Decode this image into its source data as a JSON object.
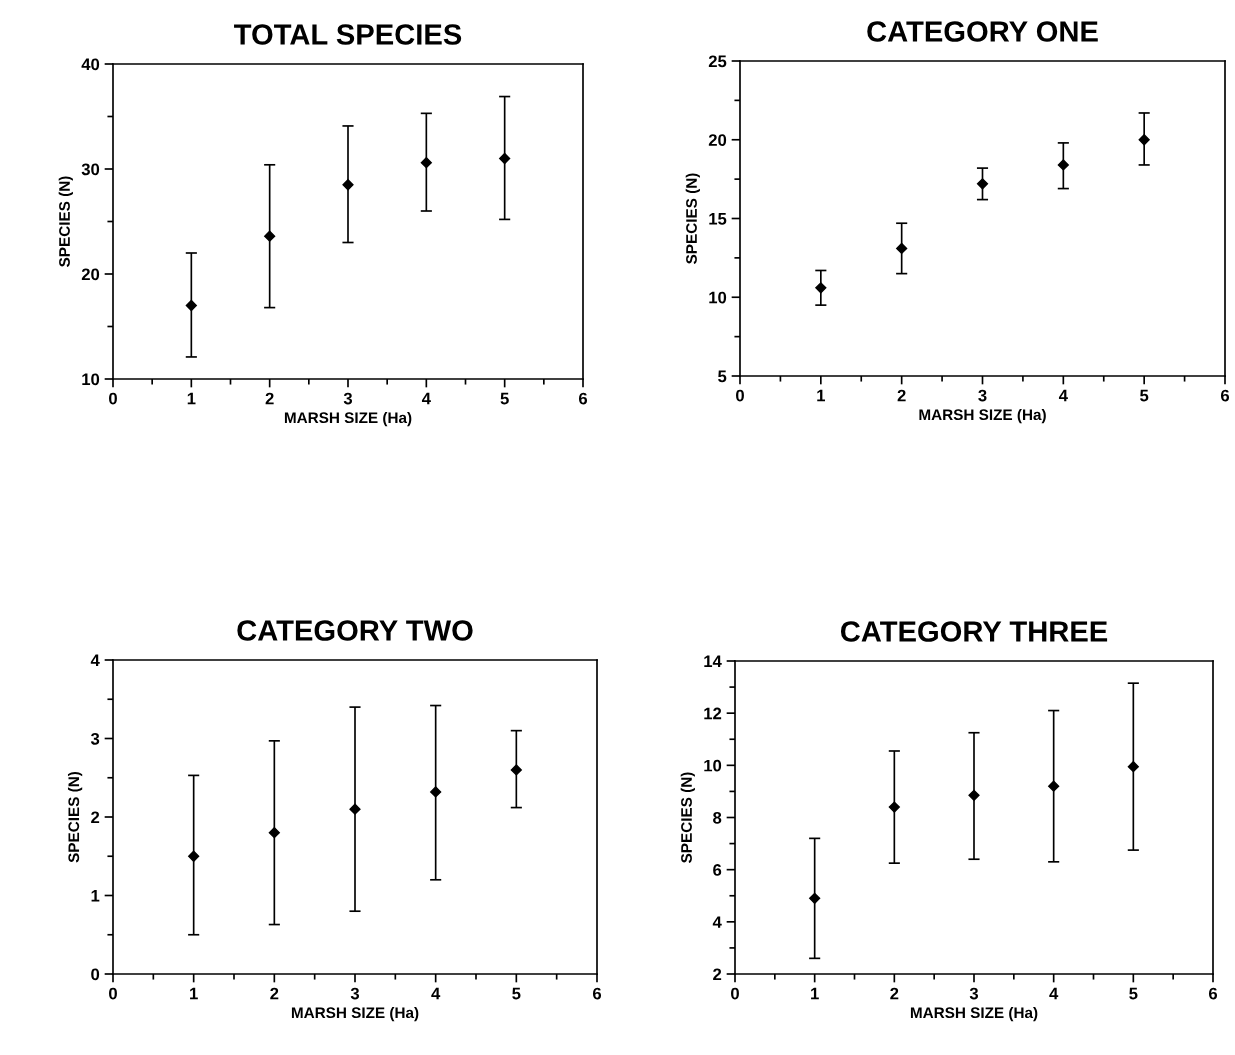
{
  "chart_data": [
    {
      "type": "scatter",
      "title": "TOTAL SPECIES",
      "xlabel": "MARSH SIZE (Ha)",
      "ylabel": "SPECIES (N)",
      "x": [
        1,
        2,
        3,
        4,
        5
      ],
      "values": [
        17.0,
        23.6,
        28.5,
        30.6,
        31.0
      ],
      "errors": [
        [
          12.1,
          22.0
        ],
        [
          16.8,
          30.4
        ],
        [
          23.0,
          34.1
        ],
        [
          26.0,
          35.3
        ],
        [
          25.2,
          36.9
        ]
      ],
      "color": "#000000",
      "marker": "diamond",
      "xlim": [
        0,
        6
      ],
      "xticks": [
        0,
        1,
        2,
        3,
        4,
        5,
        6
      ],
      "ylim": [
        10,
        40
      ],
      "yticks": [
        10,
        20,
        30,
        40
      ],
      "grid": false,
      "legend": false
    },
    {
      "type": "scatter",
      "title": "CATEGORY ONE",
      "xlabel": "MARSH SIZE (Ha)",
      "ylabel": "SPECIES (N)",
      "x": [
        1,
        2,
        3,
        4,
        5
      ],
      "values": [
        10.6,
        13.1,
        17.2,
        18.4,
        20.0
      ],
      "errors": [
        [
          9.5,
          11.7
        ],
        [
          11.5,
          14.7
        ],
        [
          16.2,
          18.2
        ],
        [
          16.9,
          19.8
        ],
        [
          18.4,
          21.7
        ]
      ],
      "color": "#000000",
      "marker": "diamond",
      "xlim": [
        0,
        6
      ],
      "xticks": [
        0,
        1,
        2,
        3,
        4,
        5,
        6
      ],
      "ylim": [
        5,
        25
      ],
      "yticks": [
        5,
        10,
        15,
        20,
        25
      ],
      "grid": false,
      "legend": false
    },
    {
      "type": "scatter",
      "title": "CATEGORY TWO",
      "xlabel": "MARSH SIZE (Ha)",
      "ylabel": "SPECIES (N)",
      "x": [
        1,
        2,
        3,
        4,
        5
      ],
      "values": [
        1.5,
        1.8,
        2.1,
        2.32,
        2.6
      ],
      "errors": [
        [
          0.5,
          2.53
        ],
        [
          0.63,
          2.97
        ],
        [
          0.8,
          3.4
        ],
        [
          1.2,
          3.42
        ],
        [
          2.12,
          3.1
        ]
      ],
      "color": "#000000",
      "marker": "diamond",
      "xlim": [
        0,
        6
      ],
      "xticks": [
        0,
        1,
        2,
        3,
        4,
        5,
        6
      ],
      "ylim": [
        0,
        4
      ],
      "yticks": [
        0,
        1,
        2,
        3,
        4
      ],
      "grid": false,
      "legend": false
    },
    {
      "type": "scatter",
      "title": "CATEGORY THREE",
      "xlabel": "MARSH SIZE (Ha)",
      "ylabel": "SPECIES (N)",
      "x": [
        1,
        2,
        3,
        4,
        5
      ],
      "values": [
        4.9,
        8.4,
        8.85,
        9.2,
        9.95
      ],
      "errors": [
        [
          2.6,
          7.2
        ],
        [
          6.25,
          10.55
        ],
        [
          6.4,
          11.25
        ],
        [
          6.3,
          12.1
        ],
        [
          6.75,
          13.15
        ]
      ],
      "color": "#000000",
      "marker": "diamond",
      "xlim": [
        0,
        6
      ],
      "xticks": [
        0,
        1,
        2,
        3,
        4,
        5,
        6
      ],
      "ylim": [
        2,
        14
      ],
      "yticks": [
        2,
        4,
        6,
        8,
        10,
        12,
        14
      ],
      "grid": false,
      "legend": false
    }
  ]
}
